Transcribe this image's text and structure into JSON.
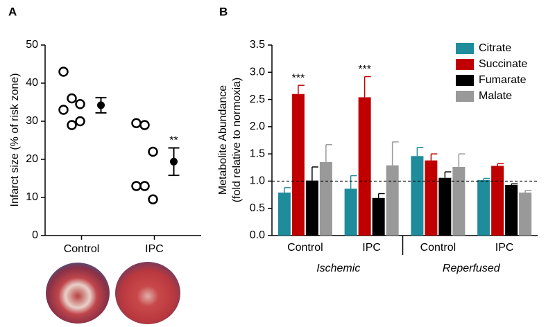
{
  "chart_data": [
    {
      "type": "scatter",
      "panel_label": "A",
      "ylabel": "Infarct size (% of risk zone)",
      "ylim": [
        0,
        50
      ],
      "yticks": [
        0,
        10,
        20,
        30,
        40,
        50
      ],
      "groups": [
        {
          "name": "Control",
          "values": [
            43,
            36,
            34.5,
            33,
            29,
            30
          ],
          "mean": 34.2,
          "error": 2,
          "significance": null
        },
        {
          "name": "IPC",
          "values": [
            29.5,
            29,
            22,
            13,
            13,
            9.5
          ],
          "mean": 19.4,
          "error": 3.6,
          "significance": "**"
        }
      ]
    },
    {
      "type": "bar",
      "panel_label": "B",
      "ylabel": [
        "Metabolite Abundance",
        "(fold relative to normoxia)"
      ],
      "ylim": [
        0,
        3.5
      ],
      "yticks": [
        {
          "value": 0,
          "label": "0.0"
        },
        0.5,
        {
          "value": 1,
          "label": "1.0"
        },
        1.5,
        {
          "value": 2,
          "label": "2.0"
        },
        2.5,
        {
          "value": 3,
          "label": "3.0"
        },
        3.5
      ],
      "reference_line": 1,
      "groups": [
        {
          "name": "Ischemic",
          "categories": [
            "Control",
            "IPC"
          ]
        },
        {
          "name": "Reperfused",
          "categories": [
            "Control",
            "IPC"
          ]
        }
      ],
      "series": [
        {
          "name": "Citrate",
          "color": "#1f8c9c",
          "values": [
            0.79,
            0.86,
            1.46,
            1.02
          ],
          "errors": [
            0.09,
            0.24,
            0.16,
            0.03
          ],
          "annotations": [
            null,
            null,
            null,
            null
          ]
        },
        {
          "name": "Succinate",
          "color": "#c00000",
          "values": [
            2.6,
            2.54,
            1.38,
            1.28
          ],
          "errors": [
            0.16,
            0.38,
            0.12,
            0.04
          ],
          "annotations": [
            "***",
            "***",
            null,
            null
          ]
        },
        {
          "name": "Fumarate",
          "color": "#000000",
          "values": [
            1.01,
            0.69,
            1.06,
            0.93
          ],
          "errors": [
            0.25,
            0.08,
            0.11,
            0.02
          ],
          "annotations": [
            null,
            null,
            null,
            null
          ]
        },
        {
          "name": "Malate",
          "color": "#999999",
          "values": [
            1.35,
            1.29,
            1.26,
            0.79
          ],
          "errors": [
            0.32,
            0.43,
            0.24,
            0.04
          ],
          "annotations": [
            null,
            null,
            null,
            null
          ]
        }
      ]
    }
  ]
}
